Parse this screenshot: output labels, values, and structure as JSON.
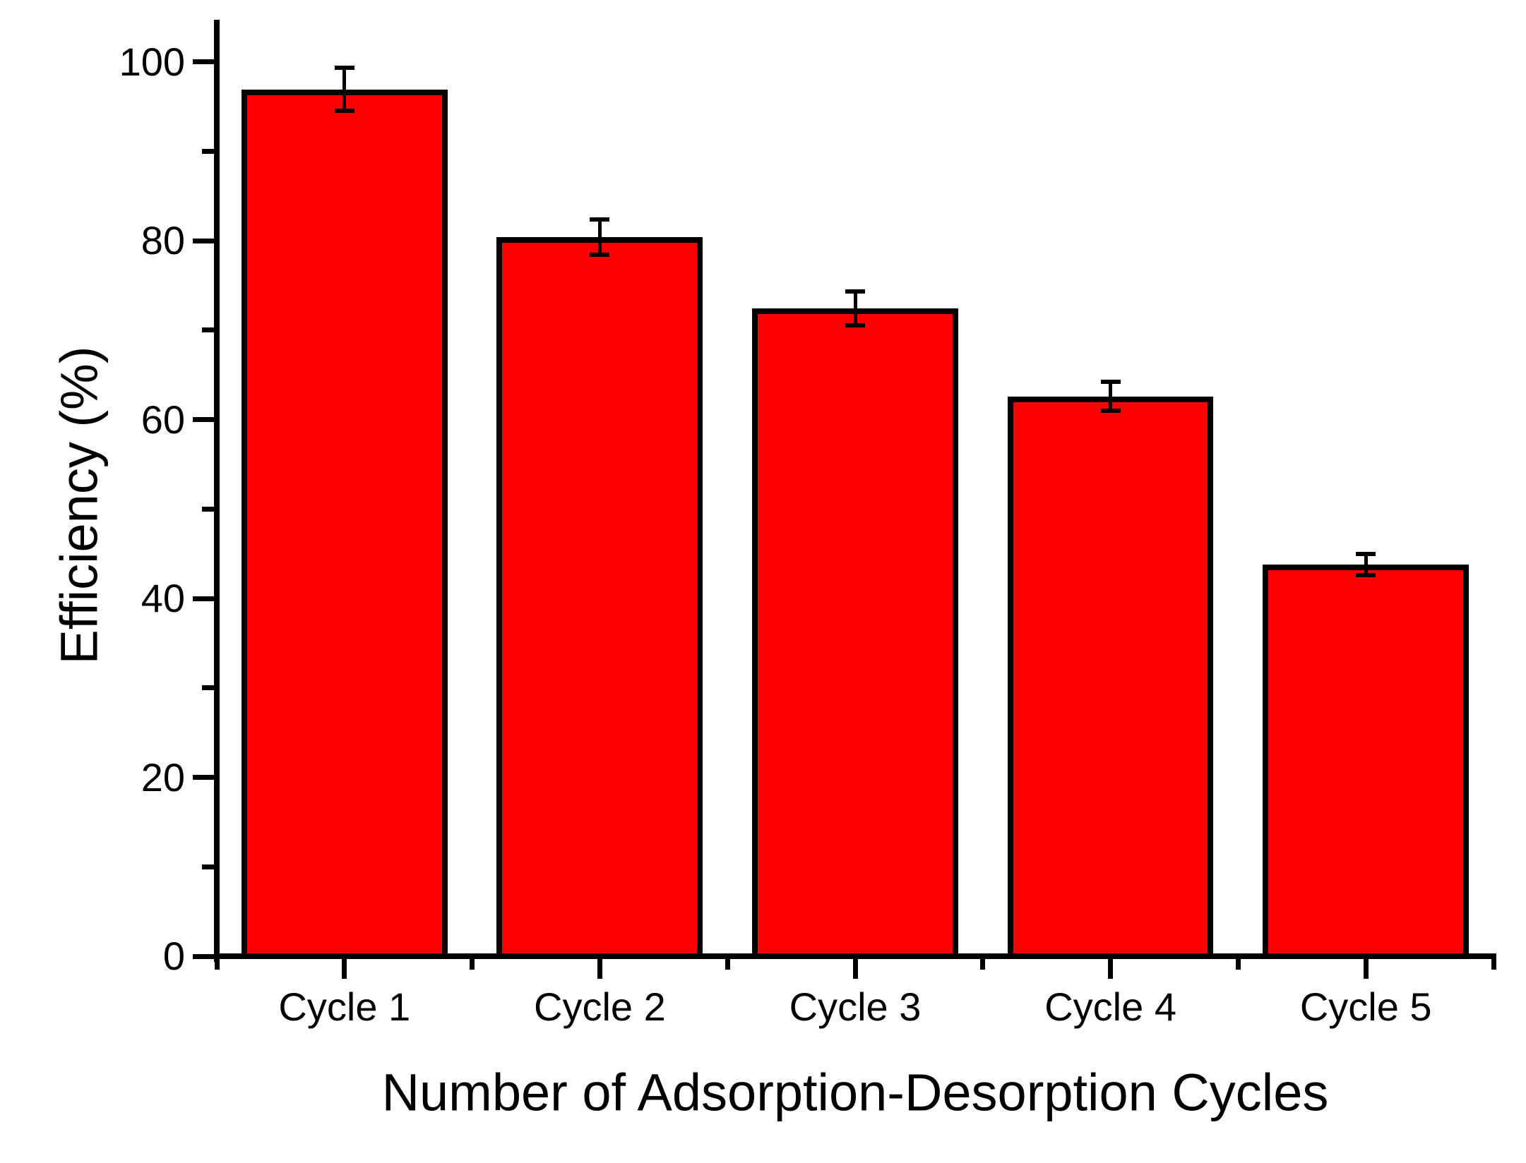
{
  "chart_data": {
    "type": "bar",
    "title": "",
    "xlabel": "Number of Adsorption-Desorption Cycles",
    "ylabel": "Efficiency (%)",
    "categories": [
      "Cycle 1",
      "Cycle 2",
      "Cycle 3",
      "Cycle 4",
      "Cycle 5"
    ],
    "values": [
      96.9,
      80.4,
      72.4,
      62.6,
      43.8
    ],
    "errors": [
      2.4,
      2.0,
      1.9,
      1.6,
      1.2
    ],
    "ylim": [
      0,
      104.7
    ],
    "yticks": [
      0,
      20,
      40,
      60,
      80,
      100
    ],
    "yticks_minor": [
      10,
      30,
      50,
      70,
      90
    ],
    "bar_color": "#FF0000",
    "line_color": "#000000",
    "background_color": "#FFFFFF",
    "grid": false,
    "legend": null,
    "error_bars": "vertical, capped, plus-minus"
  }
}
